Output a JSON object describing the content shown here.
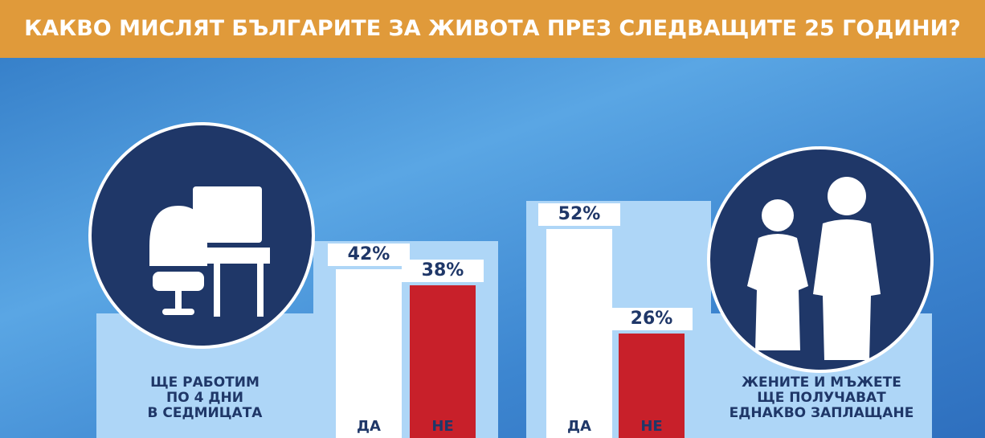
{
  "header": {
    "title": "КАКВО МИСЛЯТ БЪЛГАРИТЕ ЗА ЖИВОТА ПРЕЗ СЛЕДВАЩИТЕ 25 ГОДИНИ?"
  },
  "chart_data": [
    {
      "type": "bar",
      "title": "ЩЕ РАБОТИМ\nПО 4 ДНИ\nВ СЕДМИЦАТА",
      "categories": [
        "ДА",
        "НЕ"
      ],
      "values": [
        42,
        38
      ],
      "value_labels": [
        "42%",
        "38%"
      ],
      "colors": [
        "#ffffff",
        "#c8202a"
      ]
    },
    {
      "type": "bar",
      "title": "ЖЕНИТЕ И МЪЖЕТЕ\nЩЕ ПОЛУЧАВАТ\nЕДНАКВО ЗАПЛАЩАНЕ",
      "categories": [
        "ДА",
        "НЕ"
      ],
      "values": [
        52,
        26
      ],
      "value_labels": [
        "52%",
        "26%"
      ],
      "colors": [
        "#ffffff",
        "#c8202a"
      ]
    }
  ]
}
